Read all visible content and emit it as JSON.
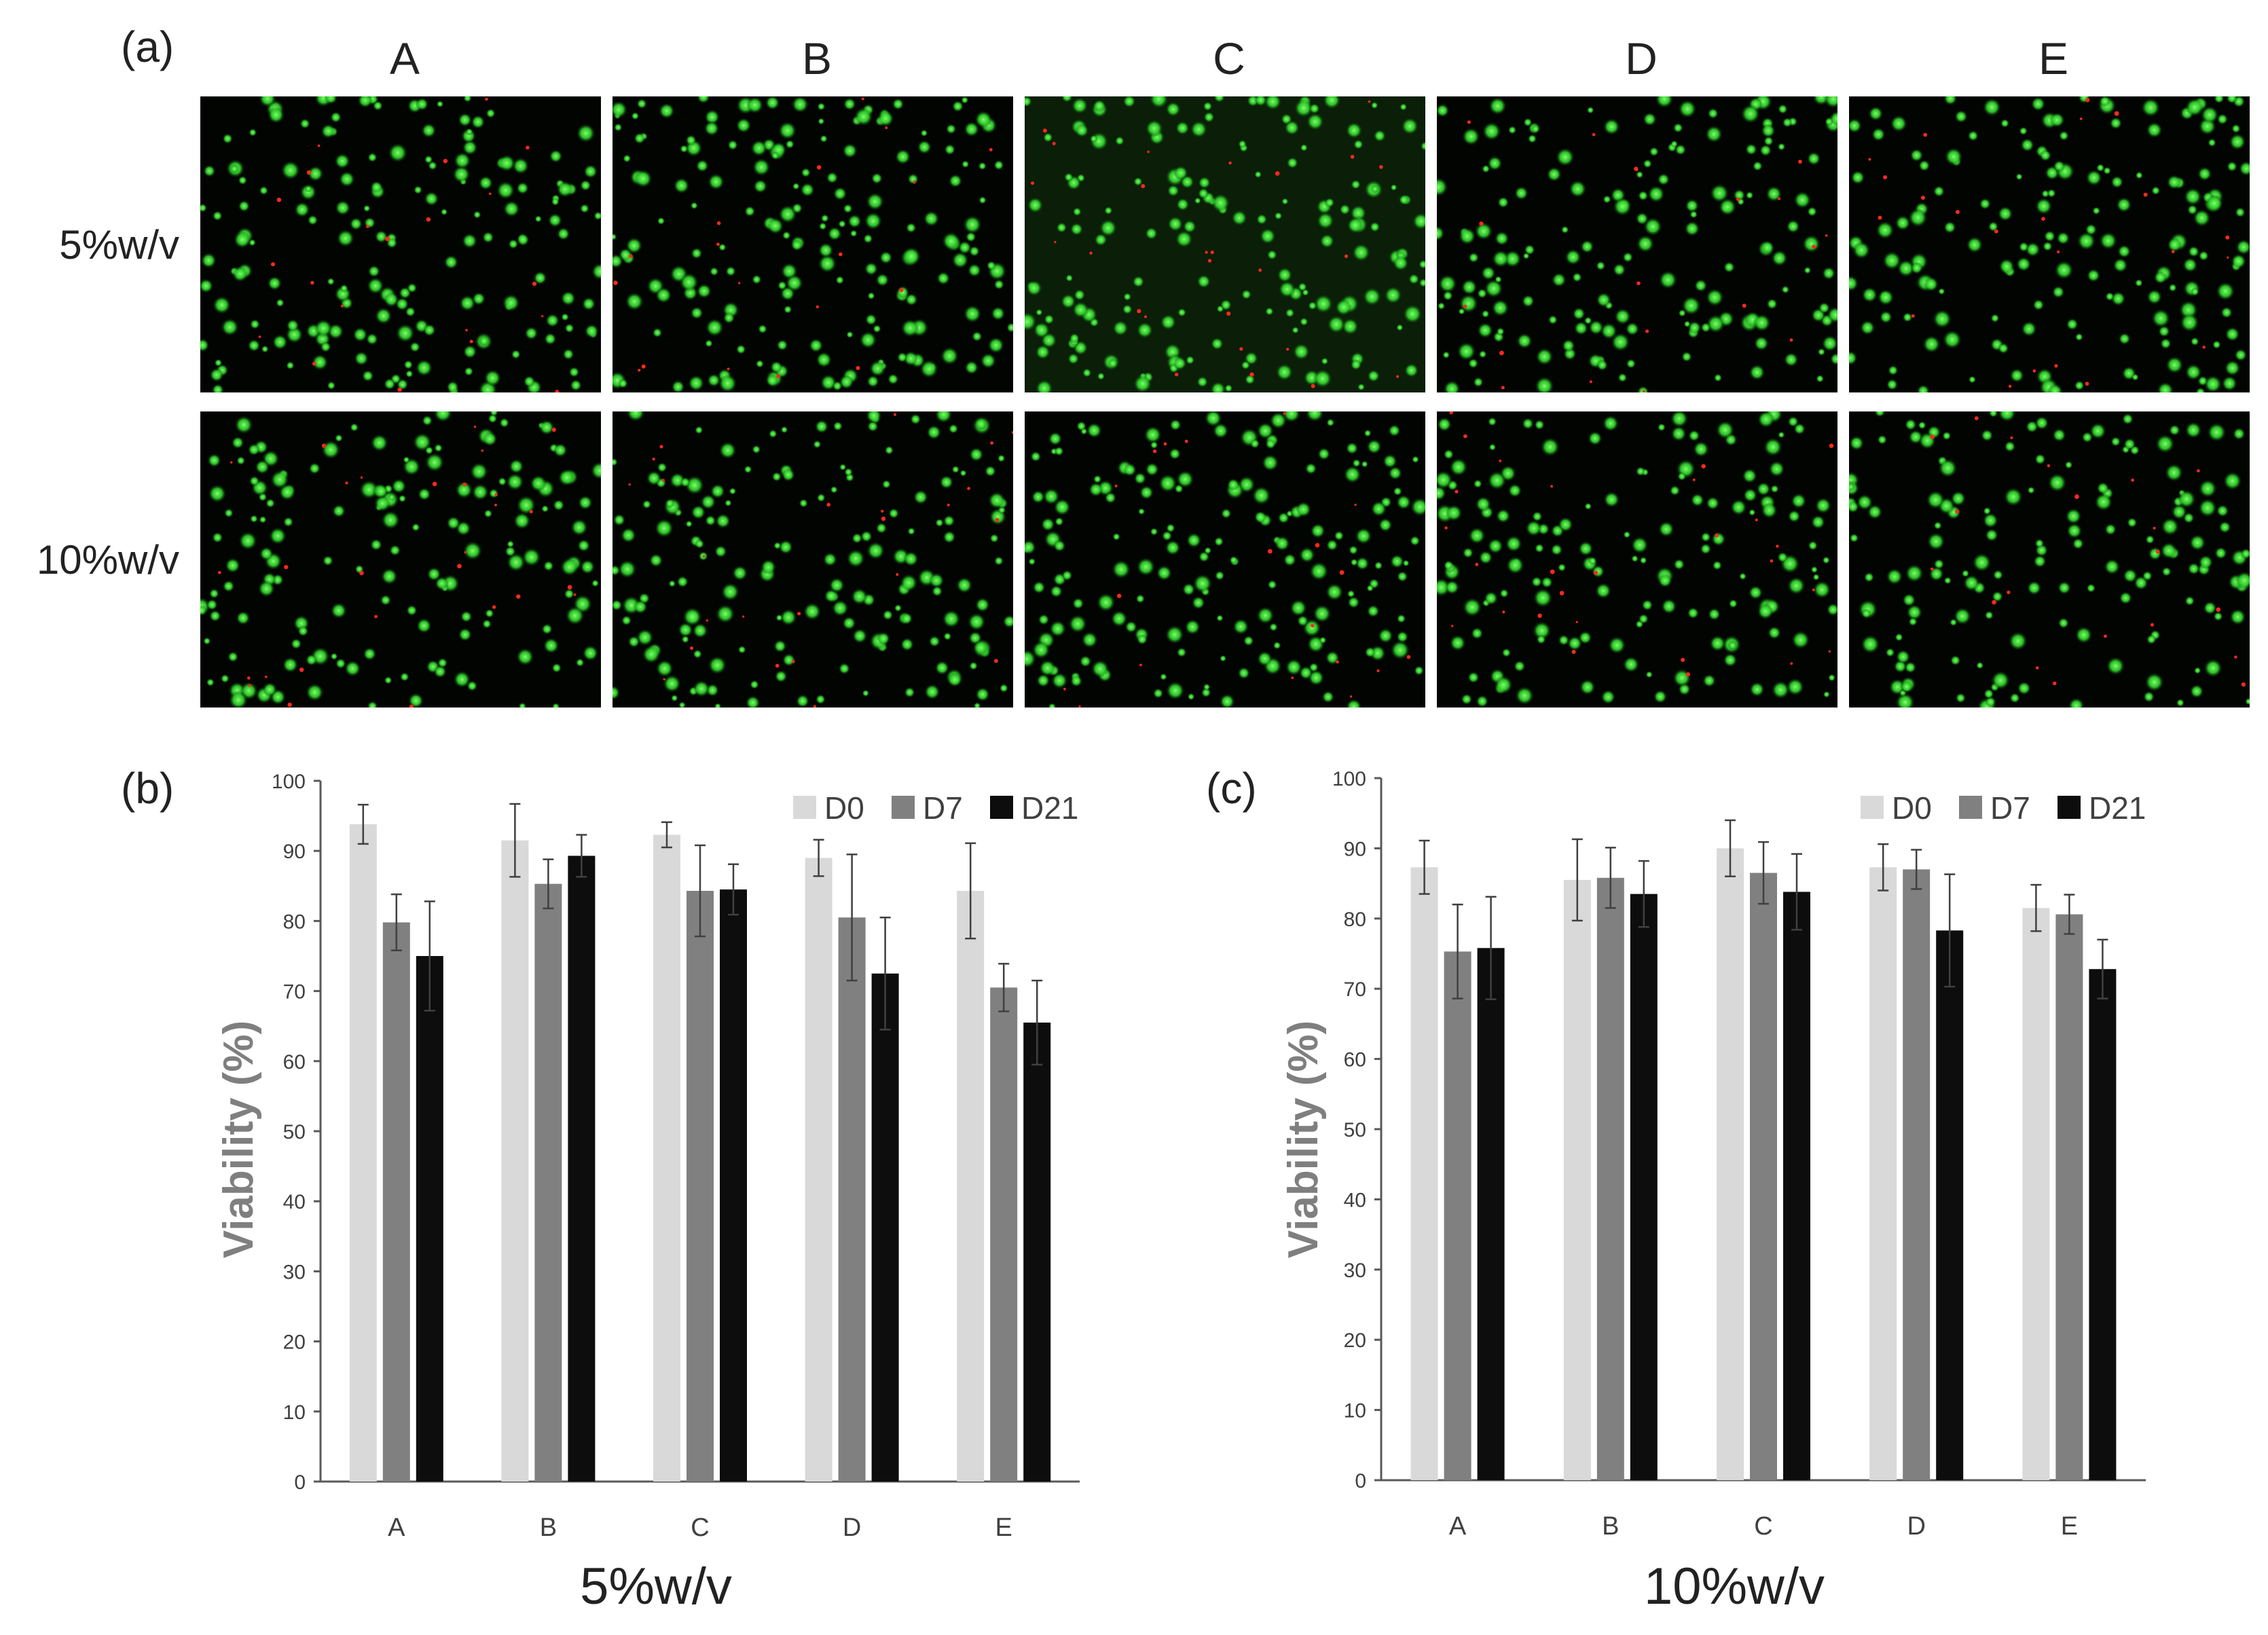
{
  "figure": {
    "panel_labels": [
      "(a)",
      "(b)",
      "(c)"
    ],
    "columns": [
      "A",
      "B",
      "C",
      "D",
      "E"
    ],
    "rows": [
      "5%w/v",
      "10%w/v"
    ],
    "micrograph_style": {
      "background": "#020402",
      "live_color": "#2fd22a",
      "dead_color": "#ff2a1a"
    }
  },
  "chart_data": [
    {
      "type": "bar",
      "panel": "(b)",
      "title": "",
      "xlabel": "5%w/v",
      "ylabel": "Viability (%)",
      "ylim": [
        0,
        100
      ],
      "yticks": [
        0,
        10,
        20,
        30,
        40,
        50,
        60,
        70,
        80,
        90,
        100
      ],
      "categories": [
        "A",
        "B",
        "C",
        "D",
        "E"
      ],
      "legend_position": "top-right",
      "grid": false,
      "series": [
        {
          "name": "D0",
          "color": "#d9d9d9",
          "values": [
            93.8,
            91.5,
            92.3,
            89.0,
            84.3
          ],
          "errors": [
            2.8,
            5.2,
            1.8,
            2.6,
            6.8
          ]
        },
        {
          "name": "D7",
          "color": "#808080",
          "values": [
            79.8,
            85.3,
            84.3,
            80.5,
            70.5
          ],
          "errors": [
            4.0,
            3.5,
            6.5,
            9.0,
            3.4
          ]
        },
        {
          "name": "D21",
          "color": "#0d0d0d",
          "values": [
            75.0,
            89.3,
            84.5,
            72.5,
            65.5
          ],
          "errors": [
            7.8,
            3.0,
            3.6,
            8.0,
            6.0
          ]
        }
      ]
    },
    {
      "type": "bar",
      "panel": "(c)",
      "title": "",
      "xlabel": "10%w/v",
      "ylabel": "Viability (%)",
      "ylim": [
        0,
        100
      ],
      "yticks": [
        0,
        10,
        20,
        30,
        40,
        50,
        60,
        70,
        80,
        90,
        100
      ],
      "categories": [
        "A",
        "B",
        "C",
        "D",
        "E"
      ],
      "legend_position": "top-right",
      "grid": false,
      "series": [
        {
          "name": "D0",
          "color": "#d9d9d9",
          "values": [
            87.3,
            85.5,
            90.0,
            87.3,
            81.5
          ],
          "errors": [
            3.8,
            5.8,
            4.0,
            3.3,
            3.3
          ]
        },
        {
          "name": "D7",
          "color": "#808080",
          "values": [
            75.3,
            85.8,
            86.5,
            87.0,
            80.6
          ],
          "errors": [
            6.7,
            4.3,
            4.4,
            2.8,
            2.8
          ]
        },
        {
          "name": "D21",
          "color": "#0d0d0d",
          "values": [
            75.8,
            83.5,
            83.8,
            78.3,
            72.8
          ],
          "errors": [
            7.3,
            4.7,
            5.4,
            8.0,
            4.2
          ]
        }
      ]
    }
  ]
}
